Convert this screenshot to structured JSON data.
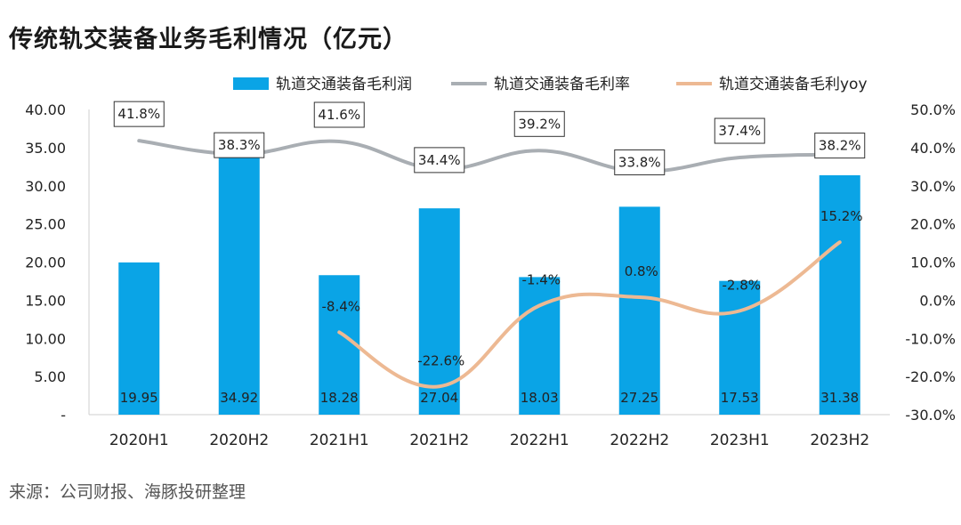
{
  "title": "传统轨交装备业务毛利情况（亿元）",
  "source": "来源：公司财报、海豚投研整理",
  "colors": {
    "bar": "#0aa4e6",
    "rate_line": "#a9aeb3",
    "yoy_line": "#edb993",
    "label_border": "#333333"
  },
  "chart_data": {
    "type": "bar",
    "title": "传统轨交装备业务毛利情况（亿元）",
    "categories": [
      "2020H1",
      "2020H2",
      "2021H1",
      "2021H2",
      "2022H1",
      "2022H2",
      "2023H1",
      "2023H2"
    ],
    "y_left": {
      "range": [
        0,
        40
      ],
      "ticks": [
        "-",
        "5.00",
        "10.00",
        "15.00",
        "20.00",
        "25.00",
        "30.00",
        "35.00",
        "40.00"
      ]
    },
    "y_right": {
      "range": [
        -30,
        50
      ],
      "ticks": [
        "-30.0%",
        "-20.0%",
        "-10.0%",
        "0.0%",
        "10.0%",
        "20.0%",
        "30.0%",
        "40.0%",
        "50.0%"
      ]
    },
    "series": [
      {
        "name": "轨道交通装备毛利润",
        "kind": "bar",
        "axis": "left",
        "values": [
          19.95,
          34.92,
          18.28,
          27.04,
          18.03,
          27.25,
          17.53,
          31.38
        ],
        "labels": [
          "19.95",
          "34.92",
          "18.28",
          "27.04",
          "18.03",
          "27.25",
          "17.53",
          "31.38"
        ]
      },
      {
        "name": "轨道交通装备毛利率",
        "kind": "line",
        "axis": "right",
        "values": [
          41.8,
          38.3,
          41.6,
          34.4,
          39.2,
          33.8,
          37.4,
          38.2
        ],
        "labels": [
          "41.8%",
          "38.3%",
          "41.6%",
          "34.4%",
          "39.2%",
          "33.8%",
          "37.4%",
          "38.2%"
        ]
      },
      {
        "name": "轨道交通装备毛利yoy",
        "kind": "line",
        "axis": "right",
        "values": [
          null,
          null,
          -8.4,
          -22.6,
          -1.4,
          0.8,
          -2.8,
          15.2
        ],
        "labels": [
          "",
          "",
          "-8.4%",
          "-22.6%",
          "-1.4%",
          "0.8%",
          "-2.8%",
          "15.2%"
        ]
      }
    ],
    "legend": "top",
    "grid": false
  }
}
